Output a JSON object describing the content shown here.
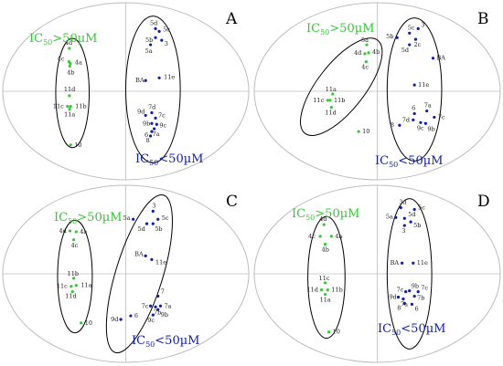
{
  "chart_data": {
    "type": "scatter",
    "xlabel": "",
    "ylabel": "",
    "colors": {
      "active": "#0f1fa8",
      "inactive": "#35c935",
      "ellipse": "#000000",
      "axis": "#bdbdbd"
    },
    "panels": [
      {
        "letter": "A",
        "xlim": [
          -1,
          1
        ],
        "ylim": [
          -1,
          1
        ],
        "inactive_label": {
          "pre": "IC",
          "sub": "50",
          "post": ">50µM"
        },
        "active_label": {
          "pre": "IC",
          "sub": "50",
          "post": "<50µM"
        },
        "inactive_ellipse": {
          "cx": -0.43,
          "cy": -0.02,
          "rx": 0.135,
          "ry": 0.61
        },
        "active_ellipse": {
          "cx": 0.22,
          "cy": 0.02,
          "rx": 0.22,
          "ry": 0.82
        },
        "points": [
          {
            "label": "4d",
            "x": -0.455,
            "y": 0.48,
            "group": "inactive",
            "dx": -5,
            "dy": -4
          },
          {
            "label": "4c",
            "x": -0.458,
            "y": 0.33,
            "group": "inactive",
            "dx": -13,
            "dy": -1
          },
          {
            "label": "4a",
            "x": -0.447,
            "y": 0.31,
            "group": "inactive",
            "dx": 5,
            "dy": 1
          },
          {
            "label": "4b",
            "x": -0.452,
            "y": 0.28,
            "group": "inactive",
            "dx": -3,
            "dy": 9
          },
          {
            "label": "11d",
            "x": -0.455,
            "y": -0.05,
            "group": "inactive",
            "dx": -6,
            "dy": -5
          },
          {
            "label": "11c",
            "x": -0.47,
            "y": -0.17,
            "group": "inactive",
            "dx": -16,
            "dy": 2
          },
          {
            "label": "11b",
            "x": -0.445,
            "y": -0.17,
            "group": "inactive",
            "dx": 5,
            "dy": 2
          },
          {
            "label": "11a",
            "x": -0.453,
            "y": -0.2,
            "group": "inactive",
            "dx": -6,
            "dy": 8
          },
          {
            "label": "10",
            "x": -0.445,
            "y": -0.6,
            "group": "inactive",
            "dx": 4,
            "dy": 2
          },
          {
            "label": "5d",
            "x": 0.24,
            "y": 0.7,
            "group": "active",
            "dx": -6,
            "dy": -4
          },
          {
            "label": "5c",
            "x": 0.27,
            "y": 0.67,
            "group": "active",
            "dx": 4,
            "dy": 0
          },
          {
            "label": "3",
            "x": 0.29,
            "y": 0.57,
            "group": "active",
            "dx": 3,
            "dy": 6
          },
          {
            "label": "5b",
            "x": 0.24,
            "y": 0.6,
            "group": "active",
            "dx": -11,
            "dy": 5
          },
          {
            "label": "5a",
            "x": 0.2,
            "y": 0.52,
            "group": "active",
            "dx": -6,
            "dy": 9
          },
          {
            "label": "BA",
            "x": 0.16,
            "y": 0.12,
            "group": "active",
            "dx": -11,
            "dy": 2
          },
          {
            "label": "11e",
            "x": 0.27,
            "y": 0.15,
            "group": "active",
            "dx": 5,
            "dy": 1
          },
          {
            "label": "7d",
            "x": 0.21,
            "y": -0.24,
            "group": "active",
            "dx": -4,
            "dy": -4
          },
          {
            "label": "9d",
            "x": 0.16,
            "y": -0.27,
            "group": "active",
            "dx": -9,
            "dy": -2
          },
          {
            "label": "7c",
            "x": 0.24,
            "y": -0.3,
            "group": "active",
            "dx": 3,
            "dy": -1
          },
          {
            "label": "9b",
            "x": 0.21,
            "y": -0.36,
            "group": "active",
            "dx": -10,
            "dy": 2
          },
          {
            "label": "9c",
            "x": 0.25,
            "y": -0.37,
            "group": "active",
            "dx": 3,
            "dy": 3
          },
          {
            "label": "7a",
            "x": 0.23,
            "y": -0.42,
            "group": "active",
            "dx": -2,
            "dy": 8
          },
          {
            "label": "6",
            "x": 0.21,
            "y": -0.45,
            "group": "active",
            "dx": -8,
            "dy": 6
          },
          {
            "label": "8",
            "x": 0.2,
            "y": -0.5,
            "group": "active",
            "dx": -5,
            "dy": 7
          }
        ]
      },
      {
        "letter": "B",
        "xlim": [
          -1,
          1
        ],
        "ylim": [
          -1,
          1
        ],
        "inactive_label": {
          "pre": "IC",
          "sub": "50",
          "post": ">50µM"
        },
        "active_label": {
          "pre": "IC",
          "sub": "50",
          "post": "<50µM"
        },
        "inactive_ellipse": {
          "cx": -0.29,
          "cy": 0.05,
          "rx": 0.19,
          "ry": 0.66,
          "rot": 38
        },
        "active_ellipse": {
          "cx": 0.3,
          "cy": 0.02,
          "rx": 0.22,
          "ry": 0.8
        },
        "points": [
          {
            "label": "5a",
            "x": -0.085,
            "y": 0.52,
            "group": "inactive",
            "dx": -6,
            "dy": -3
          },
          {
            "label": "4d",
            "x": -0.1,
            "y": 0.42,
            "group": "inactive",
            "dx": -12,
            "dy": 1
          },
          {
            "label": "4b",
            "x": -0.07,
            "y": 0.43,
            "group": "inactive",
            "dx": 4,
            "dy": 1
          },
          {
            "label": "4c",
            "x": -0.09,
            "y": 0.33,
            "group": "inactive",
            "dx": -5,
            "dy": 8
          },
          {
            "label": "11a",
            "x": -0.36,
            "y": -0.03,
            "group": "inactive",
            "dx": -8,
            "dy": -3
          },
          {
            "label": "11c",
            "x": -0.4,
            "y": -0.1,
            "group": "inactive",
            "dx": -16,
            "dy": 2
          },
          {
            "label": "11b",
            "x": -0.38,
            "y": -0.1,
            "group": "inactive",
            "dx": 4,
            "dy": 2
          },
          {
            "label": "11d",
            "x": -0.37,
            "y": -0.18,
            "group": "inactive",
            "dx": -7,
            "dy": 8
          },
          {
            "label": "10",
            "x": -0.15,
            "y": -0.45,
            "group": "inactive",
            "dx": 4,
            "dy": 2
          },
          {
            "label": "5b",
            "x": 0.16,
            "y": 0.6,
            "group": "active",
            "dx": -12,
            "dy": 1
          },
          {
            "label": "5c",
            "x": 0.26,
            "y": 0.65,
            "group": "active",
            "dx": -2,
            "dy": -4
          },
          {
            "label": "3",
            "x": 0.33,
            "y": 0.7,
            "group": "active",
            "dx": 3,
            "dy": -2
          },
          {
            "label": "2c",
            "x": 0.31,
            "y": 0.58,
            "group": "active",
            "dx": -2,
            "dy": 8
          },
          {
            "label": "5d",
            "x": 0.26,
            "y": 0.52,
            "group": "active",
            "dx": -9,
            "dy": 8
          },
          {
            "label": "BA",
            "x": 0.45,
            "y": 0.37,
            "group": "active",
            "dx": 4,
            "dy": 2
          },
          {
            "label": "11e",
            "x": 0.3,
            "y": 0.07,
            "group": "active",
            "dx": 4,
            "dy": 2
          },
          {
            "label": "7a",
            "x": 0.4,
            "y": -0.22,
            "group": "active",
            "dx": -3,
            "dy": -4
          },
          {
            "label": "6",
            "x": 0.3,
            "y": -0.25,
            "group": "active",
            "dx": -3,
            "dy": -4
          },
          {
            "label": "7c",
            "x": 0.46,
            "y": -0.29,
            "group": "active",
            "dx": 4,
            "dy": 2
          },
          {
            "label": "7d",
            "x": 0.29,
            "y": -0.32,
            "group": "active",
            "dx": -12,
            "dy": 2
          },
          {
            "label": "9c",
            "x": 0.35,
            "y": -0.35,
            "group": "active",
            "dx": -4,
            "dy": 8
          },
          {
            "label": "9b",
            "x": 0.39,
            "y": -0.36,
            "group": "active",
            "dx": 2,
            "dy": 8
          },
          {
            "label": "8",
            "x": 0.18,
            "y": -0.38,
            "group": "active",
            "dx": -10,
            "dy": 2
          }
        ]
      },
      {
        "letter": "C",
        "xlim": [
          -1,
          1
        ],
        "ylim": [
          -1,
          1
        ],
        "inactive_label": {
          "pre": "IC",
          "sub": "50",
          "post": ">50µM"
        },
        "active_label": {
          "pre": "IC",
          "sub": "50",
          "post": "<50µM"
        },
        "inactive_ellipse": {
          "cx": -0.41,
          "cy": -0.03,
          "rx": 0.14,
          "ry": 0.63
        },
        "active_ellipse": {
          "cx": 0.11,
          "cy": 0.0,
          "rx": 0.19,
          "ry": 0.92,
          "rot": 17
        },
        "points": [
          {
            "label": "4d",
            "x": -0.45,
            "y": 0.48,
            "group": "inactive",
            "dx": -12,
            "dy": 2
          },
          {
            "label": "4a",
            "x": -0.4,
            "y": 0.47,
            "group": "inactive",
            "dx": 4,
            "dy": 2
          },
          {
            "label": "4c",
            "x": -0.42,
            "y": 0.38,
            "group": "inactive",
            "dx": -3,
            "dy": 8
          },
          {
            "label": "11b",
            "x": -0.42,
            "y": -0.05,
            "group": "inactive",
            "dx": -7,
            "dy": -3
          },
          {
            "label": "11c",
            "x": -0.44,
            "y": -0.14,
            "group": "inactive",
            "dx": -16,
            "dy": 2
          },
          {
            "label": "11a",
            "x": -0.4,
            "y": -0.13,
            "group": "inactive",
            "dx": 5,
            "dy": 2
          },
          {
            "label": "11d",
            "x": -0.43,
            "y": -0.2,
            "group": "inactive",
            "dx": -8,
            "dy": 7
          },
          {
            "label": "10",
            "x": -0.36,
            "y": -0.55,
            "group": "inactive",
            "dx": 4,
            "dy": 2
          },
          {
            "label": "3",
            "x": 0.22,
            "y": 0.7,
            "group": "active",
            "dx": -1,
            "dy": -4
          },
          {
            "label": "5a",
            "x": 0.06,
            "y": 0.61,
            "group": "active",
            "dx": -11,
            "dy": 1
          },
          {
            "label": "5c",
            "x": 0.26,
            "y": 0.61,
            "group": "active",
            "dx": 4,
            "dy": 1
          },
          {
            "label": "5d",
            "x": 0.17,
            "y": 0.56,
            "group": "active",
            "dx": -10,
            "dy": 8
          },
          {
            "label": "5b",
            "x": 0.22,
            "y": 0.56,
            "group": "active",
            "dx": 2,
            "dy": 8
          },
          {
            "label": "BA",
            "x": 0.16,
            "y": 0.2,
            "group": "active",
            "dx": -12,
            "dy": 0
          },
          {
            "label": "11e",
            "x": 0.21,
            "y": 0.16,
            "group": "active",
            "dx": 4,
            "dy": 5
          },
          {
            "label": "7",
            "x": 0.26,
            "y": -0.25,
            "group": "active",
            "dx": 3,
            "dy": -3
          },
          {
            "label": "7a",
            "x": 0.28,
            "y": -0.36,
            "group": "active",
            "dx": 4,
            "dy": 2
          },
          {
            "label": "7c",
            "x": 0.2,
            "y": -0.36,
            "group": "active",
            "dx": -10,
            "dy": 2
          },
          {
            "label": "7b",
            "x": 0.24,
            "y": -0.37,
            "group": "active",
            "dx": -2,
            "dy": 8
          },
          {
            "label": "9b",
            "x": 0.26,
            "y": -0.4,
            "group": "active",
            "dx": 3,
            "dy": 8
          },
          {
            "label": "9c",
            "x": 0.22,
            "y": -0.46,
            "group": "active",
            "dx": -6,
            "dy": 8
          },
          {
            "label": "6",
            "x": 0.04,
            "y": -0.47,
            "group": "active",
            "dx": 4,
            "dy": 2
          },
          {
            "label": "9d",
            "x": -0.04,
            "y": -0.51,
            "group": "active",
            "dx": -11,
            "dy": 2
          }
        ]
      },
      {
        "letter": "D",
        "xlim": [
          -1,
          1
        ],
        "ylim": [
          -1,
          1
        ],
        "inactive_label": {
          "pre": "IC",
          "sub": "50",
          "post": ">50µM"
        },
        "active_label": {
          "pre": "IC",
          "sub": "50",
          "post": "<50µM"
        },
        "inactive_ellipse": {
          "cx": -0.41,
          "cy": -0.04,
          "rx": 0.15,
          "ry": 0.68
        },
        "active_ellipse": {
          "cx": 0.26,
          "cy": 0.0,
          "rx": 0.18,
          "ry": 0.84
        },
        "points": [
          {
            "label": "4d",
            "x": -0.43,
            "y": 0.55,
            "group": "inactive",
            "dx": -5,
            "dy": -4
          },
          {
            "label": "4c",
            "x": -0.46,
            "y": 0.42,
            "group": "inactive",
            "dx": -13,
            "dy": 2
          },
          {
            "label": "4a",
            "x": -0.37,
            "y": 0.42,
            "group": "inactive",
            "dx": 4,
            "dy": 2
          },
          {
            "label": "4b",
            "x": -0.42,
            "y": 0.33,
            "group": "inactive",
            "dx": -4,
            "dy": 8
          },
          {
            "label": "11c",
            "x": -0.42,
            "y": -0.1,
            "group": "inactive",
            "dx": -7,
            "dy": -3
          },
          {
            "label": "11d",
            "x": -0.45,
            "y": -0.18,
            "group": "inactive",
            "dx": -16,
            "dy": 2
          },
          {
            "label": "11b",
            "x": -0.4,
            "y": -0.18,
            "group": "inactive",
            "dx": 4,
            "dy": 2
          },
          {
            "label": "11a",
            "x": -0.42,
            "y": -0.23,
            "group": "inactive",
            "dx": -6,
            "dy": 8
          },
          {
            "label": "10",
            "x": -0.39,
            "y": -0.65,
            "group": "inactive",
            "dx": 4,
            "dy": 2
          },
          {
            "label": "3d",
            "x": 0.19,
            "y": 0.74,
            "group": "active",
            "dx": -2,
            "dy": -4
          },
          {
            "label": "5c",
            "x": 0.3,
            "y": 0.72,
            "group": "active",
            "dx": 4,
            "dy": 0
          },
          {
            "label": "5a",
            "x": 0.15,
            "y": 0.63,
            "group": "active",
            "dx": -11,
            "dy": 1
          },
          {
            "label": "5d",
            "x": 0.22,
            "y": 0.62,
            "group": "active",
            "dx": 4,
            "dy": -2
          },
          {
            "label": "5b",
            "x": 0.27,
            "y": 0.58,
            "group": "active",
            "dx": 3,
            "dy": 6
          },
          {
            "label": "3",
            "x": 0.22,
            "y": 0.54,
            "group": "active",
            "dx": -3,
            "dy": 8
          },
          {
            "label": "BA",
            "x": 0.2,
            "y": 0.12,
            "group": "active",
            "dx": -13,
            "dy": 2
          },
          {
            "label": "11e",
            "x": 0.29,
            "y": 0.12,
            "group": "active",
            "dx": 4,
            "dy": 2
          },
          {
            "label": "7c",
            "x": 0.23,
            "y": -0.2,
            "group": "active",
            "dx": -10,
            "dy": 0
          },
          {
            "label": "9b",
            "x": 0.26,
            "y": -0.19,
            "group": "active",
            "dx": 2,
            "dy": -3
          },
          {
            "label": "7c",
            "x": 0.33,
            "y": -0.2,
            "group": "active",
            "dx": 3,
            "dy": -2
          },
          {
            "label": "9d",
            "x": 0.17,
            "y": -0.26,
            "group": "active",
            "dx": -10,
            "dy": 2
          },
          {
            "label": "7b",
            "x": 0.3,
            "y": -0.25,
            "group": "active",
            "dx": 3,
            "dy": 4
          },
          {
            "label": "7a",
            "x": 0.21,
            "y": -0.28,
            "group": "active",
            "dx": -3,
            "dy": 8
          },
          {
            "label": "8",
            "x": 0.22,
            "y": -0.33,
            "group": "active",
            "dx": -8,
            "dy": 7
          },
          {
            "label": "6",
            "x": 0.28,
            "y": -0.34,
            "group": "active",
            "dx": 3,
            "dy": 7
          }
        ]
      }
    ]
  }
}
